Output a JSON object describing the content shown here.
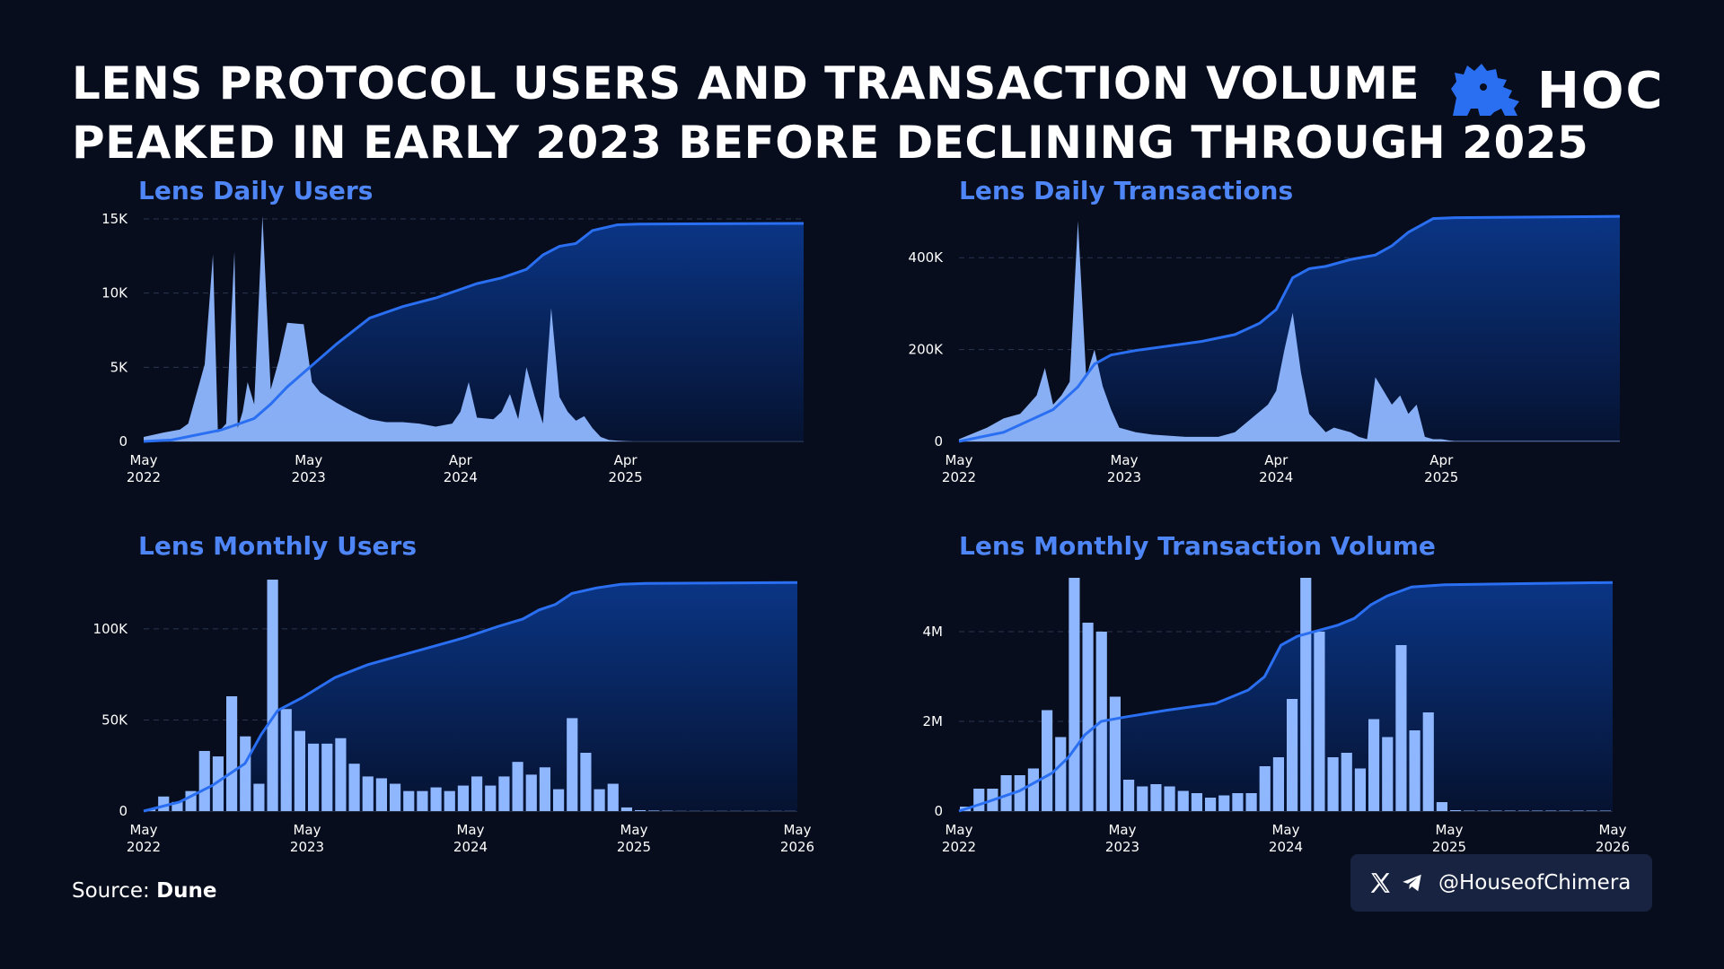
{
  "title": {
    "line1": "LENS PROTOCOL USERS AND TRANSACTION VOLUME",
    "line2": "PEAKED IN EARLY 2023 BEFORE DECLINING THROUGH 2025"
  },
  "brand": {
    "logo_text": "HOC",
    "icon": "lion-icon"
  },
  "source": {
    "label": "Source:",
    "value": "Dune"
  },
  "social": {
    "handle": "@HouseofChimera",
    "icons": [
      "x-logo-icon",
      "telegram-icon"
    ]
  },
  "colors": {
    "background": "#070d1c",
    "accent": "#4f86f7",
    "bar": "#8fb7ff",
    "line": "#2a6ff2",
    "area_top": "#0a3585",
    "area_bottom": "#061230"
  },
  "chart_data": [
    {
      "id": "daily-users",
      "type": "area",
      "title": "Lens Daily Users",
      "ylim": [
        0,
        15000
      ],
      "yticks": [
        {
          "value": 0,
          "label": "0"
        },
        {
          "value": 5000,
          "label": "5K"
        },
        {
          "value": 10000,
          "label": "10K"
        },
        {
          "value": 15000,
          "label": "15K"
        }
      ],
      "xlim": [
        2022.33,
        2026.33
      ],
      "xticks": [
        {
          "value": 2022.33,
          "label": [
            "May",
            "2022"
          ]
        },
        {
          "value": 2023.33,
          "label": [
            "May",
            "2023"
          ]
        },
        {
          "value": 2024.25,
          "label": [
            "Apr",
            "2024"
          ]
        },
        {
          "value": 2025.25,
          "label": [
            "Apr",
            "2025"
          ]
        }
      ],
      "grid": true,
      "daily": {
        "x": [
          2022.33,
          2022.45,
          2022.55,
          2022.6,
          2022.7,
          2022.75,
          2022.78,
          2022.83,
          2022.88,
          2022.9,
          2022.93,
          2022.96,
          2023.0,
          2023.05,
          2023.1,
          2023.15,
          2023.2,
          2023.3,
          2023.35,
          2023.4,
          2023.5,
          2023.6,
          2023.7,
          2023.8,
          2023.9,
          2024.0,
          2024.1,
          2024.2,
          2024.25,
          2024.3,
          2024.35,
          2024.45,
          2024.5,
          2024.55,
          2024.6,
          2024.65,
          2024.7,
          2024.75,
          2024.8,
          2024.85,
          2024.9,
          2024.95,
          2025.0,
          2025.05,
          2025.1,
          2025.15,
          2025.2,
          2025.25,
          2025.3,
          2026.33
        ],
        "y": [
          300,
          600,
          800,
          1200,
          5200,
          12600,
          600,
          1200,
          12800,
          900,
          2000,
          4000,
          2500,
          15200,
          3500,
          5500,
          8000,
          7900,
          4000,
          3300,
          2600,
          2000,
          1500,
          1300,
          1300,
          1200,
          1000,
          1200,
          2000,
          4000,
          1600,
          1500,
          2000,
          3200,
          1500,
          5000,
          3000,
          1200,
          9000,
          3000,
          2000,
          1400,
          1700,
          900,
          300,
          100,
          50,
          20,
          10,
          10
        ]
      },
      "cumulative": {
        "x": [
          2022.33,
          2022.5,
          2022.8,
          2023.0,
          2023.1,
          2023.2,
          2023.35,
          2023.5,
          2023.7,
          2023.9,
          2024.1,
          2024.25,
          2024.35,
          2024.5,
          2024.65,
          2024.75,
          2024.85,
          2024.95,
          2025.05,
          2025.2,
          2025.33,
          2026.33
        ],
        "y": [
          0,
          100,
          800,
          1600,
          2600,
          3800,
          5300,
          6800,
          8600,
          9400,
          10000,
          10600,
          11000,
          11400,
          12000,
          13000,
          13600,
          13800,
          14700,
          15100,
          15150,
          15200
        ]
      }
    },
    {
      "id": "daily-transactions",
      "type": "area",
      "title": "Lens Daily Transactions",
      "ylim": [
        0,
        500000
      ],
      "yticks": [
        {
          "value": 0,
          "label": "0"
        },
        {
          "value": 200000,
          "label": "200K"
        },
        {
          "value": 400000,
          "label": "400K"
        }
      ],
      "xlim": [
        2022.33,
        2026.33
      ],
      "xticks": [
        {
          "value": 2022.33,
          "label": [
            "May",
            "2022"
          ]
        },
        {
          "value": 2023.33,
          "label": [
            "May",
            "2023"
          ]
        },
        {
          "value": 2024.25,
          "label": [
            "Apr",
            "2024"
          ]
        },
        {
          "value": 2025.25,
          "label": [
            "Apr",
            "2025"
          ]
        }
      ],
      "grid": true,
      "daily": {
        "x": [
          2022.33,
          2022.5,
          2022.6,
          2022.7,
          2022.8,
          2022.85,
          2022.9,
          2022.95,
          2023.0,
          2023.05,
          2023.1,
          2023.15,
          2023.2,
          2023.25,
          2023.3,
          2023.4,
          2023.5,
          2023.7,
          2023.9,
          2024.0,
          2024.1,
          2024.2,
          2024.25,
          2024.3,
          2024.35,
          2024.4,
          2024.45,
          2024.5,
          2024.55,
          2024.6,
          2024.7,
          2024.75,
          2024.8,
          2024.85,
          2024.9,
          2024.95,
          2025.0,
          2025.05,
          2025.1,
          2025.15,
          2025.2,
          2025.25,
          2025.3,
          2025.33,
          2026.33
        ],
        "y": [
          5000,
          30000,
          50000,
          60000,
          100000,
          160000,
          80000,
          100000,
          130000,
          480000,
          140000,
          200000,
          120000,
          70000,
          30000,
          20000,
          15000,
          10000,
          10000,
          20000,
          50000,
          80000,
          110000,
          200000,
          280000,
          150000,
          60000,
          40000,
          20000,
          30000,
          20000,
          10000,
          5000,
          140000,
          110000,
          80000,
          100000,
          60000,
          80000,
          10000,
          5000,
          5000,
          2000,
          1000,
          1000
        ]
      },
      "cumulative": {
        "x": [
          2022.33,
          2022.6,
          2022.9,
          2023.05,
          2023.15,
          2023.25,
          2023.4,
          2023.6,
          2023.8,
          2024.0,
          2024.15,
          2024.25,
          2024.35,
          2024.45,
          2024.55,
          2024.7,
          2024.85,
          2024.95,
          2025.05,
          2025.2,
          2025.33,
          2026.33
        ],
        "y": [
          0,
          20000,
          70000,
          120000,
          170000,
          190000,
          200000,
          210000,
          220000,
          235000,
          260000,
          290000,
          360000,
          380000,
          385000,
          400000,
          410000,
          430000,
          460000,
          490000,
          492000,
          495000
        ]
      }
    },
    {
      "id": "monthly-users",
      "type": "bar",
      "title": "Lens Monthly Users",
      "ylim": [
        0,
        128000
      ],
      "yticks": [
        {
          "value": 0,
          "label": "0"
        },
        {
          "value": 50000,
          "label": "50K"
        },
        {
          "value": 100000,
          "label": "100K"
        }
      ],
      "xlim": [
        2022.33,
        2026.33
      ],
      "xticks": [
        {
          "value": 2022.33,
          "label": [
            "May",
            "2022"
          ]
        },
        {
          "value": 2023.33,
          "label": [
            "May",
            "2023"
          ]
        },
        {
          "value": 2024.33,
          "label": [
            "May",
            "2024"
          ]
        },
        {
          "value": 2025.33,
          "label": [
            "May",
            "2025"
          ]
        },
        {
          "value": 2026.33,
          "label": [
            "May",
            "2026"
          ]
        }
      ],
      "grid": true,
      "bars": [
        1000,
        8000,
        5000,
        11000,
        33000,
        30000,
        63000,
        41000,
        15000,
        127000,
        56000,
        44000,
        37000,
        37000,
        40000,
        26000,
        19000,
        18000,
        15000,
        11000,
        11000,
        13000,
        11000,
        14000,
        19000,
        14000,
        19000,
        27000,
        20000,
        24000,
        12000,
        51000,
        32000,
        12000,
        15000,
        2000,
        500,
        300,
        200,
        100,
        100,
        100,
        100,
        100,
        100,
        100,
        100,
        100
      ],
      "cumulative": {
        "x": [
          2022.33,
          2022.55,
          2022.75,
          2022.95,
          2023.05,
          2023.15,
          2023.3,
          2023.5,
          2023.7,
          2023.9,
          2024.1,
          2024.3,
          2024.5,
          2024.65,
          2024.75,
          2024.85,
          2024.95,
          2025.1,
          2025.25,
          2025.4,
          2026.33
        ],
        "y": [
          0,
          5000,
          14000,
          26000,
          42000,
          55000,
          62000,
          73000,
          80000,
          85000,
          90000,
          95000,
          101000,
          105000,
          110000,
          113000,
          119000,
          122000,
          124000,
          124500,
          125000
        ]
      }
    },
    {
      "id": "monthly-transactions",
      "type": "bar",
      "title": "Lens Monthly Transaction Volume",
      "ylim": [
        0,
        5200000
      ],
      "yticks": [
        {
          "value": 0,
          "label": "0"
        },
        {
          "value": 2000000,
          "label": "2M"
        },
        {
          "value": 4000000,
          "label": "4M"
        }
      ],
      "xlim": [
        2022.33,
        2026.33
      ],
      "xticks": [
        {
          "value": 2022.33,
          "label": [
            "May",
            "2022"
          ]
        },
        {
          "value": 2023.33,
          "label": [
            "May",
            "2023"
          ]
        },
        {
          "value": 2024.33,
          "label": [
            "May",
            "2024"
          ]
        },
        {
          "value": 2025.33,
          "label": [
            "May",
            "2025"
          ]
        },
        {
          "value": 2026.33,
          "label": [
            "May",
            "2026"
          ]
        }
      ],
      "grid": true,
      "bars": [
        100000,
        500000,
        500000,
        800000,
        800000,
        950000,
        2250000,
        1650000,
        5200000,
        4200000,
        4000000,
        2550000,
        700000,
        550000,
        600000,
        550000,
        450000,
        400000,
        300000,
        350000,
        400000,
        400000,
        1000000,
        1200000,
        2500000,
        5200000,
        4000000,
        1200000,
        1300000,
        950000,
        2050000,
        1650000,
        3700000,
        1800000,
        2200000,
        200000,
        20000,
        10000,
        10000,
        10000,
        10000,
        10000,
        10000,
        10000,
        10000,
        10000,
        10000,
        10000
      ],
      "cumulative": {
        "x": [
          2022.33,
          2022.5,
          2022.7,
          2022.9,
          2023.0,
          2023.1,
          2023.2,
          2023.35,
          2023.6,
          2023.9,
          2024.1,
          2024.2,
          2024.3,
          2024.4,
          2024.5,
          2024.65,
          2024.75,
          2024.85,
          2024.95,
          2025.1,
          2025.3,
          2026.33
        ],
        "y": [
          0,
          200000,
          450000,
          850000,
          1200000,
          1700000,
          2000000,
          2100000,
          2250000,
          2400000,
          2700000,
          3000000,
          3700000,
          3900000,
          4000000,
          4150000,
          4300000,
          4600000,
          4800000,
          5000000,
          5050000,
          5100000
        ]
      }
    }
  ]
}
